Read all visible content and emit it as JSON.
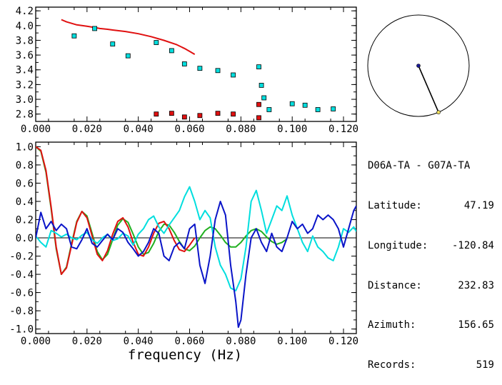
{
  "station_pair": "D06A-TA - G07A-TA",
  "info": [
    {
      "label": "Latitude:",
      "value": "47.19"
    },
    {
      "label": "Longitude:",
      "value": "-120.84"
    },
    {
      "label": "Distance:",
      "value": "232.83"
    },
    {
      "label": "Azimuth:",
      "value": "156.65"
    },
    {
      "label": "Records:",
      "value": "519"
    }
  ],
  "xlabel": "frequency (Hz)",
  "colors": {
    "red": "#e01010",
    "cyan": "#00dede",
    "blue": "#0a14c8",
    "green": "#20b020",
    "axis": "#000000"
  },
  "azimuth_deg": 156.65,
  "chart_data": [
    {
      "type": "scatter",
      "xlim": [
        0.0,
        0.125
      ],
      "ylim": [
        2.7,
        4.25
      ],
      "xticks": [
        "0.000",
        "0.020",
        "0.040",
        "0.060",
        "0.080",
        "0.100",
        "0.120"
      ],
      "yticks": [
        "2.8",
        "3.0",
        "3.2",
        "3.4",
        "3.6",
        "3.8",
        "4.0",
        "4.2"
      ],
      "series": [
        {
          "kind": "line",
          "color": "red",
          "x": [
            0.01,
            0.012,
            0.014,
            0.016,
            0.018,
            0.02,
            0.022,
            0.025,
            0.028,
            0.03,
            0.035,
            0.04,
            0.045,
            0.05,
            0.055,
            0.058,
            0.06,
            0.062
          ],
          "y": [
            4.08,
            4.05,
            4.03,
            4.01,
            4.0,
            3.99,
            3.98,
            3.96,
            3.95,
            3.94,
            3.92,
            3.89,
            3.85,
            3.8,
            3.74,
            3.69,
            3.65,
            3.61
          ]
        },
        {
          "kind": "markers",
          "color": "cyan",
          "x": [
            0.015,
            0.023,
            0.03,
            0.036,
            0.047,
            0.053,
            0.058,
            0.064,
            0.071,
            0.077,
            0.087,
            0.088,
            0.089,
            0.091,
            0.1,
            0.105,
            0.11,
            0.116
          ],
          "y": [
            3.86,
            3.96,
            3.75,
            3.59,
            3.77,
            3.66,
            3.48,
            3.42,
            3.39,
            3.33,
            3.44,
            3.19,
            3.02,
            2.86,
            2.94,
            2.92,
            2.86,
            2.87
          ]
        },
        {
          "kind": "markers",
          "color": "red",
          "x": [
            0.047,
            0.053,
            0.058,
            0.064,
            0.071,
            0.077,
            0.087,
            0.087
          ],
          "y": [
            2.8,
            2.81,
            2.76,
            2.78,
            2.81,
            2.8,
            2.93,
            2.75
          ]
        }
      ]
    },
    {
      "type": "line",
      "xlim": [
        0.0,
        0.125
      ],
      "ylim": [
        -1.05,
        1.05
      ],
      "xticks": [
        "0.000",
        "0.020",
        "0.040",
        "0.060",
        "0.080",
        "0.100",
        "0.120"
      ],
      "yticks": [
        "1.0",
        "0.8",
        "0.6",
        "0.4",
        "0.2",
        "0.0",
        "-0.2",
        "-0.4",
        "-0.6",
        "-0.8",
        "-1.0"
      ],
      "series": [
        {
          "color": "green",
          "x": [
            0.0,
            0.002,
            0.004,
            0.006,
            0.008,
            0.01,
            0.012,
            0.014,
            0.016,
            0.018,
            0.02,
            0.022,
            0.024,
            0.026,
            0.028,
            0.03,
            0.032,
            0.034,
            0.036,
            0.038,
            0.04,
            0.042,
            0.044,
            0.046,
            0.048,
            0.05,
            0.052,
            0.054,
            0.056,
            0.058,
            0.06,
            0.062,
            0.064,
            0.066,
            0.068,
            0.07,
            0.072,
            0.074,
            0.076,
            0.078,
            0.08,
            0.082,
            0.084,
            0.086,
            0.088,
            0.09,
            0.092,
            0.094,
            0.096,
            0.098
          ],
          "y": [
            1.0,
            0.95,
            0.72,
            0.32,
            -0.12,
            -0.4,
            -0.32,
            -0.06,
            0.18,
            0.29,
            0.24,
            0.05,
            -0.15,
            -0.24,
            -0.18,
            -0.02,
            0.14,
            0.21,
            0.17,
            0.04,
            -0.1,
            -0.18,
            -0.16,
            -0.06,
            0.07,
            0.15,
            0.14,
            0.06,
            -0.04,
            -0.12,
            -0.14,
            -0.09,
            0.0,
            0.08,
            0.12,
            0.1,
            0.03,
            -0.05,
            -0.1,
            -0.1,
            -0.05,
            0.02,
            0.08,
            0.1,
            0.07,
            0.01,
            -0.04,
            -0.07,
            -0.05,
            -0.01
          ]
        },
        {
          "color": "red",
          "x": [
            0.0,
            0.002,
            0.004,
            0.006,
            0.008,
            0.01,
            0.012,
            0.014,
            0.016,
            0.018,
            0.02,
            0.022,
            0.024,
            0.026,
            0.028,
            0.03,
            0.032,
            0.034,
            0.036,
            0.038,
            0.04,
            0.042,
            0.044,
            0.046,
            0.048,
            0.05,
            0.052,
            0.054,
            0.056,
            0.058,
            0.06,
            0.062
          ],
          "y": [
            1.0,
            0.96,
            0.74,
            0.34,
            -0.1,
            -0.4,
            -0.33,
            -0.08,
            0.17,
            0.29,
            0.22,
            0.02,
            -0.18,
            -0.25,
            -0.14,
            0.04,
            0.18,
            0.22,
            0.12,
            -0.05,
            -0.18,
            -0.2,
            -0.1,
            0.05,
            0.16,
            0.18,
            0.1,
            -0.03,
            -0.13,
            -0.15,
            -0.08,
            0.0
          ]
        },
        {
          "color": "cyan",
          "x": [
            0.0,
            0.002,
            0.004,
            0.006,
            0.008,
            0.01,
            0.012,
            0.014,
            0.016,
            0.018,
            0.02,
            0.022,
            0.024,
            0.026,
            0.028,
            0.03,
            0.032,
            0.034,
            0.036,
            0.038,
            0.04,
            0.042,
            0.044,
            0.046,
            0.048,
            0.05,
            0.052,
            0.054,
            0.056,
            0.058,
            0.06,
            0.062,
            0.064,
            0.066,
            0.068,
            0.07,
            0.072,
            0.074,
            0.076,
            0.078,
            0.08,
            0.082,
            0.084,
            0.086,
            0.088,
            0.09,
            0.092,
            0.094,
            0.096,
            0.098,
            0.1,
            0.102,
            0.104,
            0.106,
            0.108,
            0.11,
            0.112,
            0.114,
            0.116,
            0.118,
            0.12,
            0.122,
            0.124,
            0.125
          ],
          "y": [
            0.02,
            -0.05,
            -0.1,
            0.08,
            0.05,
            0.01,
            0.04,
            0.0,
            -0.02,
            0.03,
            0.06,
            -0.02,
            -0.06,
            0.0,
            0.04,
            -0.03,
            -0.01,
            0.05,
            0.02,
            -0.08,
            0.04,
            0.1,
            0.2,
            0.24,
            0.12,
            0.05,
            0.14,
            0.22,
            0.3,
            0.45,
            0.56,
            0.4,
            0.2,
            0.3,
            0.22,
            -0.1,
            -0.3,
            -0.4,
            -0.55,
            -0.58,
            -0.45,
            -0.1,
            0.4,
            0.52,
            0.3,
            0.05,
            0.2,
            0.35,
            0.3,
            0.46,
            0.25,
            0.1,
            -0.05,
            -0.15,
            0.02,
            -0.1,
            -0.15,
            -0.22,
            -0.25,
            -0.1,
            0.1,
            0.06,
            0.12,
            0.07
          ]
        },
        {
          "color": "blue",
          "x": [
            0.0,
            0.002,
            0.004,
            0.006,
            0.008,
            0.01,
            0.012,
            0.014,
            0.016,
            0.018,
            0.02,
            0.022,
            0.024,
            0.026,
            0.028,
            0.03,
            0.032,
            0.034,
            0.036,
            0.038,
            0.04,
            0.042,
            0.044,
            0.046,
            0.048,
            0.05,
            0.052,
            0.054,
            0.056,
            0.058,
            0.06,
            0.062,
            0.064,
            0.066,
            0.068,
            0.07,
            0.072,
            0.074,
            0.076,
            0.078,
            0.079,
            0.08,
            0.082,
            0.084,
            0.086,
            0.088,
            0.09,
            0.092,
            0.094,
            0.096,
            0.098,
            0.1,
            0.102,
            0.104,
            0.106,
            0.108,
            0.11,
            0.112,
            0.114,
            0.116,
            0.118,
            0.12,
            0.122,
            0.124,
            0.125
          ],
          "y": [
            0.0,
            0.28,
            0.1,
            0.18,
            0.08,
            0.15,
            0.1,
            -0.1,
            -0.12,
            -0.02,
            0.1,
            -0.06,
            -0.1,
            -0.03,
            0.04,
            -0.02,
            0.1,
            0.06,
            -0.05,
            -0.12,
            -0.2,
            -0.15,
            -0.05,
            0.1,
            0.05,
            -0.2,
            -0.25,
            -0.1,
            -0.05,
            -0.12,
            0.1,
            0.15,
            -0.3,
            -0.5,
            -0.2,
            0.2,
            0.4,
            0.25,
            -0.3,
            -0.7,
            -0.98,
            -0.9,
            -0.4,
            0.0,
            0.1,
            -0.05,
            -0.15,
            0.05,
            -0.1,
            -0.15,
            0.0,
            0.18,
            0.1,
            0.15,
            0.05,
            0.1,
            0.25,
            0.2,
            0.25,
            0.2,
            0.1,
            -0.1,
            0.1,
            0.3,
            0.35
          ]
        }
      ]
    }
  ]
}
